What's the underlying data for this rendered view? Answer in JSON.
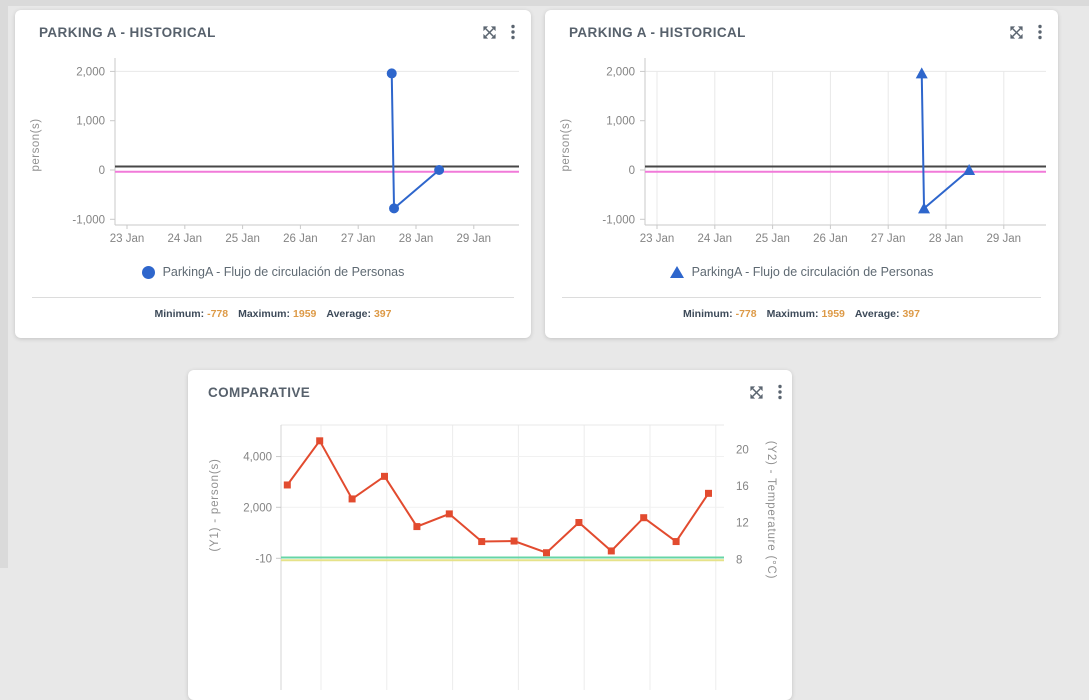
{
  "page": {
    "background": "#e8e8e8"
  },
  "panels": [
    {
      "title": "PARKING A - HISTORICAL",
      "legend": {
        "marker": "circle",
        "label": "ParkingA - Flujo de circulación de Personas"
      },
      "stats": [
        {
          "label": "Minimum:",
          "value": "-778"
        },
        {
          "label": "Maximum:",
          "value": "1959"
        },
        {
          "label": "Average:",
          "value": "397"
        }
      ]
    },
    {
      "title": "PARKING A - HISTORICAL",
      "legend": {
        "marker": "triangle",
        "label": "ParkingA - Flujo de circulación de Personas"
      },
      "stats": [
        {
          "label": "Minimum:",
          "value": "-778"
        },
        {
          "label": "Maximum:",
          "value": "1959"
        },
        {
          "label": "Average:",
          "value": "397"
        }
      ]
    },
    {
      "title": "COMPARATIVE"
    }
  ],
  "icons": {
    "expand": "expand-arrows",
    "menu": "vertical-ellipsis"
  },
  "colors": {
    "title": "#57616c",
    "icon": "#5b6570",
    "blue_series": "#2e66cc",
    "red_series": "#e24b2f",
    "dark_reference": "#474747",
    "pink_reference": "#f17ad9",
    "green_reference": "#67d5a5",
    "yellow_reference": "#e6e289",
    "stat_value": "#dd9a47"
  },
  "chart_data": [
    {
      "type": "line",
      "title": "PARKING A - HISTORICAL",
      "ylabel": "person(s)",
      "xticks": [
        "23 Jan",
        "24 Jan",
        "25 Jan",
        "26 Jan",
        "27 Jan",
        "28 Jan",
        "29 Jan"
      ],
      "yticks": [
        2000,
        1000,
        0,
        -1000
      ],
      "ylim": [
        -1110,
        2230
      ],
      "grid": "none",
      "legend_position": "bottom",
      "series": [
        {
          "name": "ParkingA - Flujo de circulación de Personas",
          "color": "#2e66cc",
          "marker": "circle",
          "points": [
            {
              "x": 27.58,
              "y": 1959
            },
            {
              "x": 27.62,
              "y": -778
            },
            {
              "x": 28.4,
              "y": 0
            }
          ]
        }
      ],
      "reference_lines": [
        {
          "y": 70,
          "color": "#474747"
        },
        {
          "y": -35,
          "color": "#f17ad9"
        }
      ],
      "stats": {
        "minimum": -778,
        "maximum": 1959,
        "average": 397
      }
    },
    {
      "type": "line",
      "title": "PARKING A - HISTORICAL",
      "ylabel": "person(s)",
      "xticks": [
        "23 Jan",
        "24 Jan",
        "25 Jan",
        "26 Jan",
        "27 Jan",
        "28 Jan",
        "29 Jan"
      ],
      "yticks": [
        2000,
        1000,
        0,
        -1000
      ],
      "ylim": [
        -1110,
        2230
      ],
      "grid": "vertical",
      "legend_position": "bottom",
      "series": [
        {
          "name": "ParkingA - Flujo de circulación de Personas",
          "color": "#2e66cc",
          "marker": "triangle",
          "points": [
            {
              "x": 27.58,
              "y": 1959
            },
            {
              "x": 27.62,
              "y": -778
            },
            {
              "x": 28.4,
              "y": 0
            }
          ]
        }
      ],
      "reference_lines": [
        {
          "y": 70,
          "color": "#474747"
        },
        {
          "y": -35,
          "color": "#f17ad9"
        }
      ],
      "stats": {
        "minimum": -778,
        "maximum": 1959,
        "average": 397
      }
    },
    {
      "type": "line",
      "title": "COMPARATIVE",
      "y1label": "(Y1) - person(s)",
      "y2label": "(Y2) - Temperature (°C)",
      "y1ticks": [
        4000,
        2000,
        -10
      ],
      "y2ticks": [
        20,
        16,
        12,
        8
      ],
      "x": [
        1,
        2,
        3,
        4,
        5,
        6,
        7,
        8,
        9,
        10,
        11,
        12,
        13,
        14
      ],
      "grid": "vertical",
      "series": [
        {
          "axis": "y1",
          "color": "#e24b2f",
          "marker": "square",
          "values": [
            2880,
            4620,
            2330,
            3220,
            1240,
            1740,
            650,
            670,
            210,
            1400,
            280,
            1590,
            650,
            2550
          ]
        }
      ],
      "reference_lines": [
        {
          "axis": "y1",
          "y": 21,
          "color": "#67d5a5"
        },
        {
          "axis": "y1",
          "y": -89,
          "color": "#e6e289"
        }
      ]
    }
  ]
}
